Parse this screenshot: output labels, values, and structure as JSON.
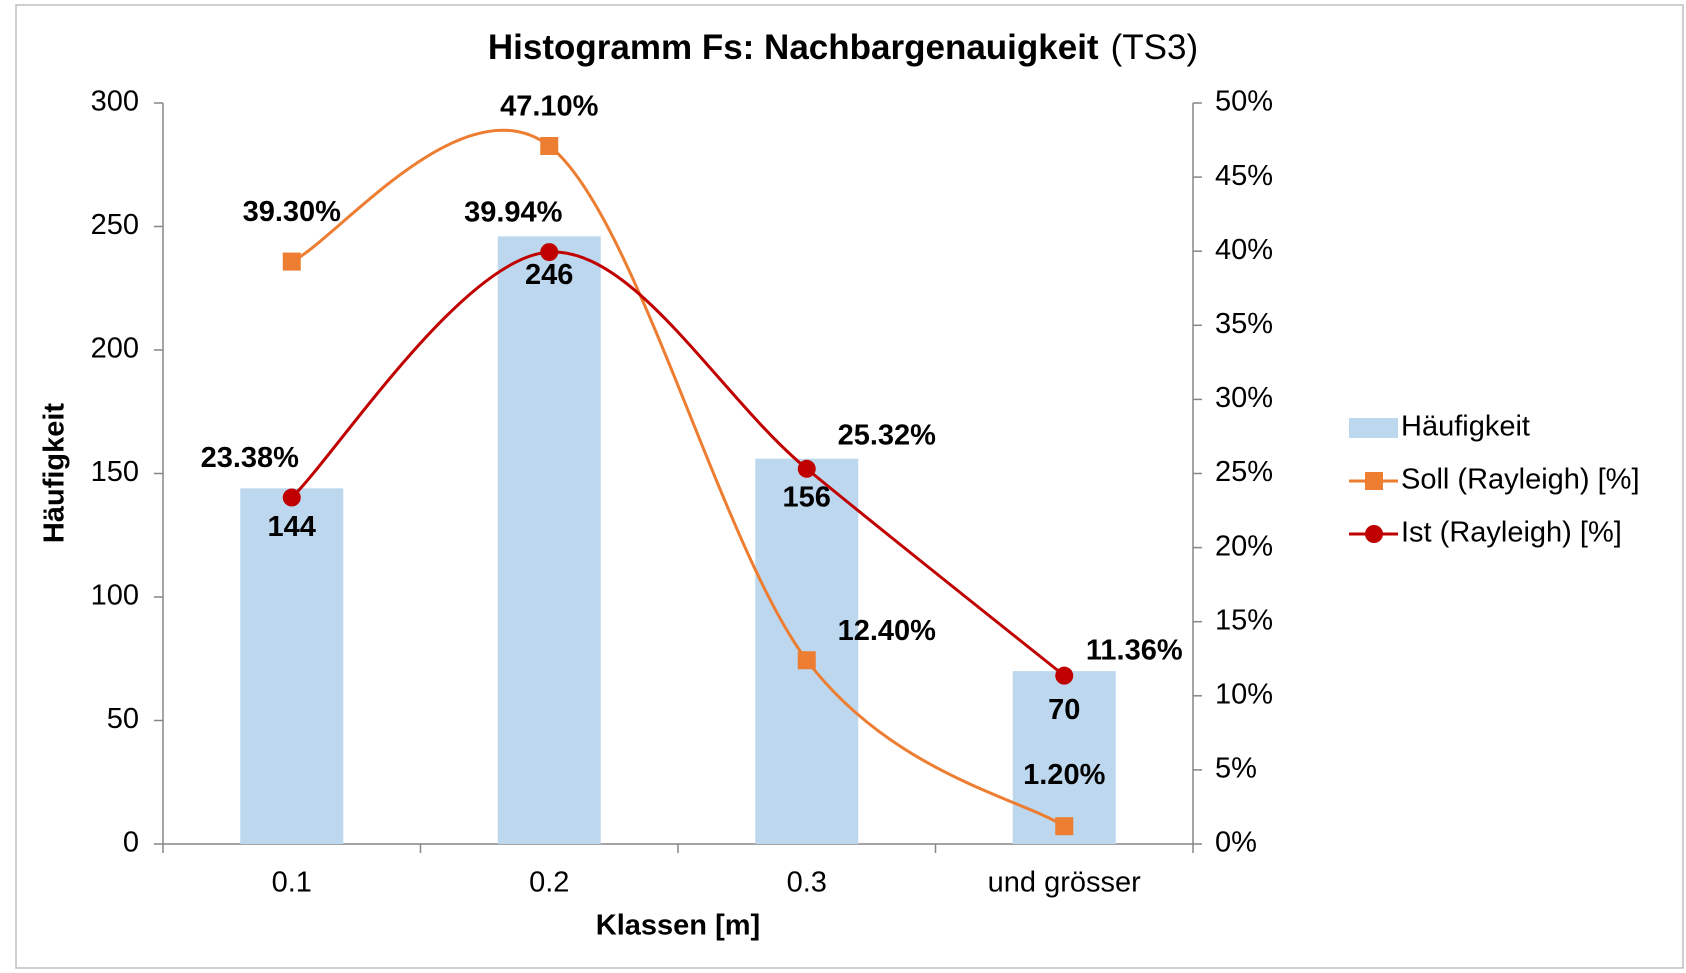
{
  "chart_data": {
    "type": "bar",
    "title": "Histogramm Fs: Nachbargenauigkeit",
    "subtitle": "(TS3)",
    "x_label": "Klassen [m]",
    "y_label": "Häufigkeit",
    "categories": [
      "0.1",
      "0.2",
      "0.3",
      "und grösser"
    ],
    "ylim": [
      0,
      300
    ],
    "yticks": [
      0,
      50,
      100,
      150,
      200,
      250,
      300
    ],
    "y2lim": [
      0,
      50
    ],
    "y2ticks": [
      {
        "value": 0,
        "label": "0%"
      },
      {
        "value": 5,
        "label": "5%"
      },
      {
        "value": 10,
        "label": "10%"
      },
      {
        "value": 15,
        "label": "15%"
      },
      {
        "value": 20,
        "label": "20%"
      },
      {
        "value": 25,
        "label": "25%"
      },
      {
        "value": 30,
        "label": "30%"
      },
      {
        "value": 35,
        "label": "35%"
      },
      {
        "value": 40,
        "label": "40%"
      },
      {
        "value": 45,
        "label": "45%"
      },
      {
        "value": 50,
        "label": "50%"
      }
    ],
    "legend": "right",
    "series": [
      {
        "name": "Häufigkeit",
        "type": "bar",
        "color": "#bdd7ee",
        "label_color": "#2e75b6",
        "values": [
          144,
          246,
          156,
          70
        ]
      },
      {
        "name": "Soll (Rayleigh) [%]",
        "type": "line",
        "axis": "y2",
        "marker": "square",
        "color": "#ed7d31",
        "values": [
          39.3,
          47.1,
          12.4,
          1.2
        ],
        "value_labels": [
          "39.30%",
          "47.10%",
          "12.40%",
          "1.20%"
        ]
      },
      {
        "name": "Ist (Rayleigh) [%]",
        "type": "line",
        "axis": "y2",
        "marker": "circle",
        "color": "#c00000",
        "values": [
          23.38,
          39.94,
          25.32,
          11.36
        ],
        "value_labels": [
          "23.38%",
          "39.94%",
          "25.32%",
          "11.36%"
        ]
      }
    ]
  }
}
